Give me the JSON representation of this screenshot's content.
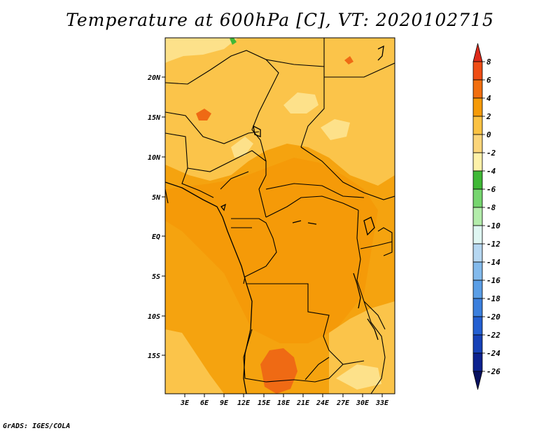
{
  "title": "Temperature at 600hPa [C], VT: 2020102715",
  "footer": "GrADS: IGES/COLA",
  "map": {
    "lat_labels": [
      "20N",
      "15N",
      "10N",
      "5N",
      "EQ",
      "5S",
      "10S",
      "15S"
    ],
    "lon_labels": [
      "3E",
      "6E",
      "9E",
      "12E",
      "15E",
      "18E",
      "21E",
      "24E",
      "27E",
      "30E",
      "33E"
    ]
  },
  "colorbar": {
    "levels": [
      "8",
      "6",
      "4",
      "2",
      "0",
      "-2",
      "-4",
      "-6",
      "-8",
      "-10",
      "-12",
      "-14",
      "-16",
      "-18",
      "-20",
      "-22",
      "-24",
      "-26"
    ],
    "colors": [
      "#dd2a1a",
      "#ef4d15",
      "#f16e0e",
      "#f59a08",
      "#fbc243",
      "#fbd57a",
      "#fdf1a9",
      "#3fb836",
      "#76d56f",
      "#b3ecab",
      "#dff6f2",
      "#b6d7f1",
      "#83baec",
      "#5a9ee6",
      "#3b7fdd",
      "#235fd1",
      "#1641b7",
      "#0c218f",
      "#06105f"
    ]
  },
  "fields": {
    "land_color": "#f5a30f",
    "warm_patch_color": "#ef6a14",
    "cool_patch_color": "#fbc44a",
    "cold_patch_color": "#fde18a"
  }
}
